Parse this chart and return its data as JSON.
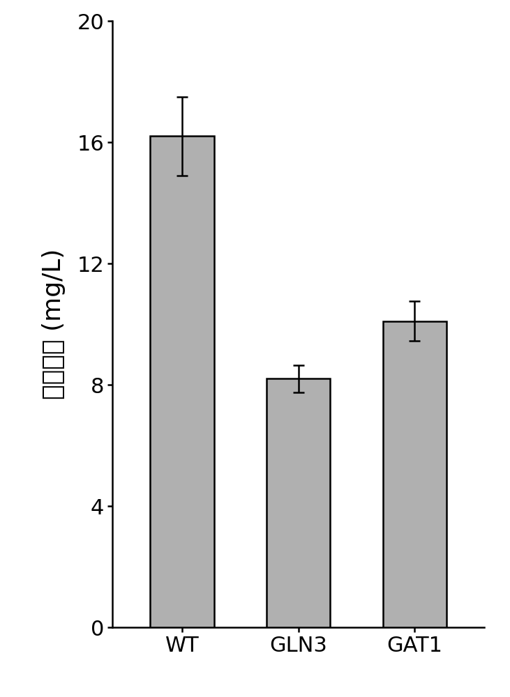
{
  "categories": [
    "WT",
    "GLN3",
    "GAT1"
  ],
  "values": [
    16.2,
    8.2,
    10.1
  ],
  "errors": [
    1.3,
    0.45,
    0.65
  ],
  "bar_color": "#b0b0b0",
  "bar_edgecolor": "#000000",
  "ylabel": "尿素浓度 (mg/L)",
  "ylim": [
    0,
    20
  ],
  "yticks": [
    0,
    4,
    8,
    12,
    16,
    20
  ],
  "background_color": "#ffffff",
  "bar_width": 0.55,
  "capsize": 6,
  "ylabel_fontsize": 26,
  "tick_fontsize": 22,
  "xtick_fontsize": 22,
  "linewidth": 1.8
}
